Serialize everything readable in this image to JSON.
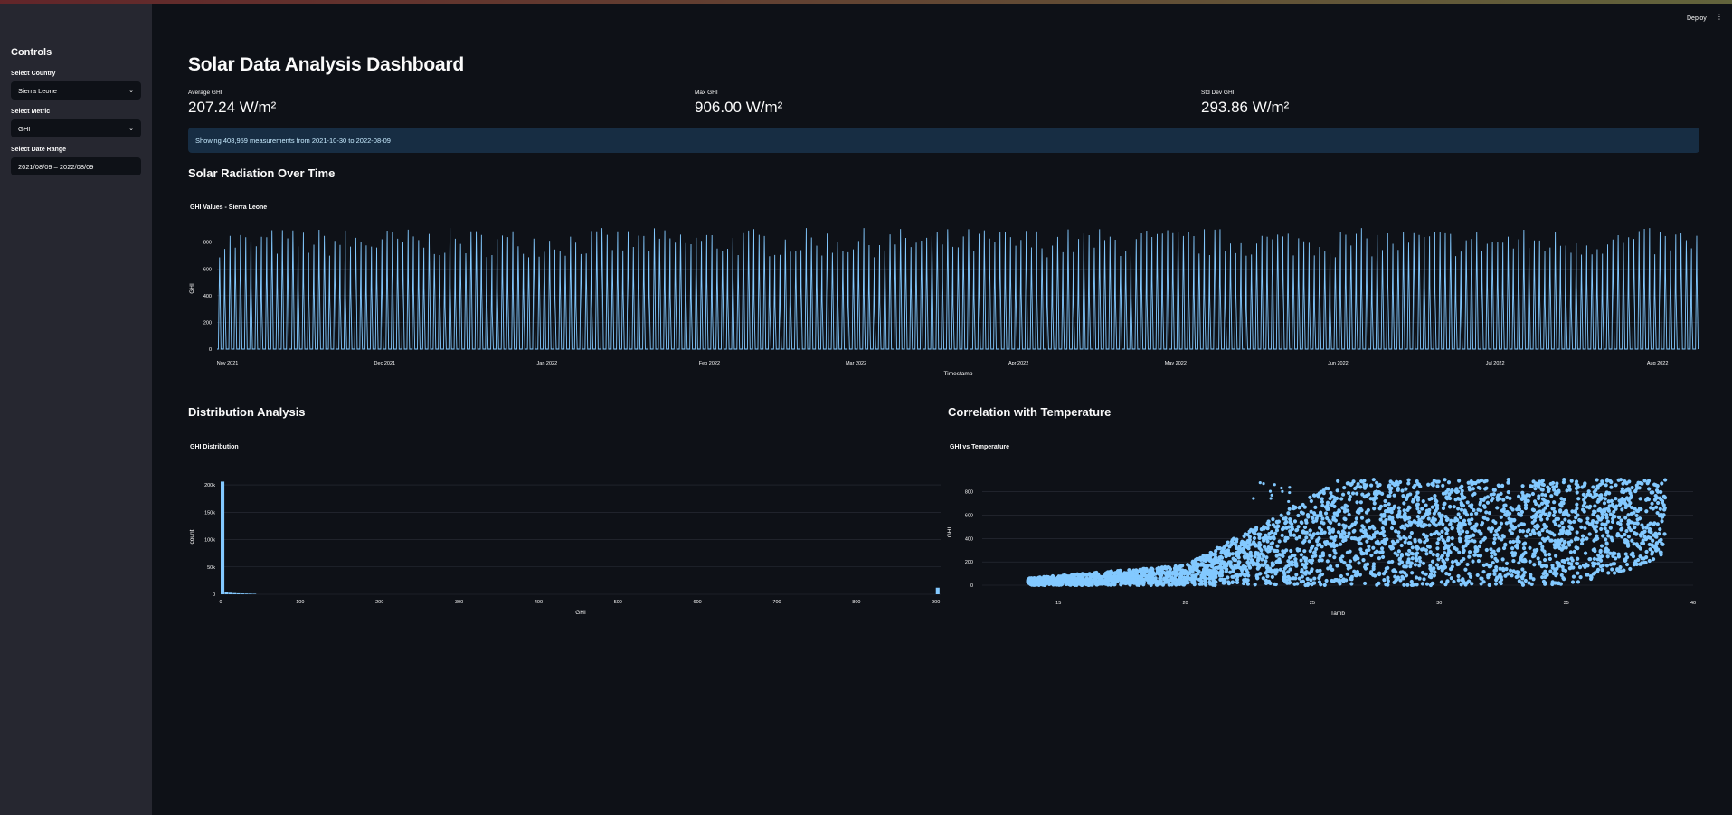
{
  "header": {
    "deploy_label": "Deploy",
    "menu_icon": "kebab-menu-icon"
  },
  "sidebar": {
    "title": "Controls",
    "country": {
      "label": "Select Country",
      "value": "Sierra Leone"
    },
    "metric": {
      "label": "Select Metric",
      "value": "GHI"
    },
    "date_range": {
      "label": "Select Date Range",
      "value": "2021/08/09 – 2022/08/09"
    }
  },
  "main": {
    "title": "Solar Data Analysis Dashboard",
    "metrics": [
      {
        "label": "Average GHI",
        "value": "207.24 W/m²"
      },
      {
        "label": "Max GHI",
        "value": "906.00 W/m²"
      },
      {
        "label": "Std Dev GHI",
        "value": "293.86 W/m²"
      }
    ],
    "info": "Showing 408,959 measurements from 2021-10-30 to 2022-08-09",
    "sections": {
      "time": "Solar Radiation Over Time",
      "distribution": "Distribution Analysis",
      "correlation": "Correlation with Temperature"
    }
  },
  "colors": {
    "series": "#83c9ff",
    "background": "#0e1117",
    "sidebar": "#262730",
    "info_bg": "#172d43"
  },
  "chart_data": [
    {
      "type": "line",
      "title": "GHI Values - Sierra Leone",
      "xlabel": "Timestamp",
      "ylabel": "GHI",
      "x_ticks": [
        "Nov 2021",
        "Dec 2021",
        "Jan 2022",
        "Feb 2022",
        "Mar 2022",
        "Apr 2022",
        "May 2022",
        "Jun 2022",
        "Jul 2022",
        "Aug 2022"
      ],
      "y_ticks": [
        0,
        200,
        400,
        600,
        800
      ],
      "ylim": [
        0,
        906
      ],
      "x_range": [
        "2021-10-30",
        "2022-08-09"
      ],
      "daily_peak_approx": 880,
      "grid": true
    },
    {
      "type": "bar",
      "title": "GHI Distribution",
      "xlabel": "GHI",
      "ylabel": "count",
      "x_ticks": [
        0,
        100,
        200,
        300,
        400,
        500,
        600,
        700,
        800,
        900
      ],
      "y_ticks": [
        "0",
        "50k",
        "100k",
        "150k",
        "200k"
      ],
      "xlim": [
        0,
        906
      ],
      "ylim": [
        0,
        210000
      ],
      "bin_width": 5,
      "bins_x": [
        0,
        5,
        10,
        15,
        20,
        25,
        30,
        35,
        40,
        900
      ],
      "counts": [
        206000,
        4500,
        2800,
        2200,
        1800,
        1500,
        1300,
        1100,
        900,
        12000
      ],
      "grid": true
    },
    {
      "type": "scatter",
      "title": "GHI vs Temperature",
      "xlabel": "Tamb",
      "ylabel": "GHI",
      "x_ticks": [
        15,
        20,
        25,
        30,
        35,
        40
      ],
      "y_ticks": [
        0,
        200,
        400,
        600,
        800
      ],
      "xlim": [
        12,
        40
      ],
      "ylim": [
        0,
        906
      ],
      "tamb_range": [
        13.8,
        38.9
      ],
      "grid": true
    }
  ]
}
